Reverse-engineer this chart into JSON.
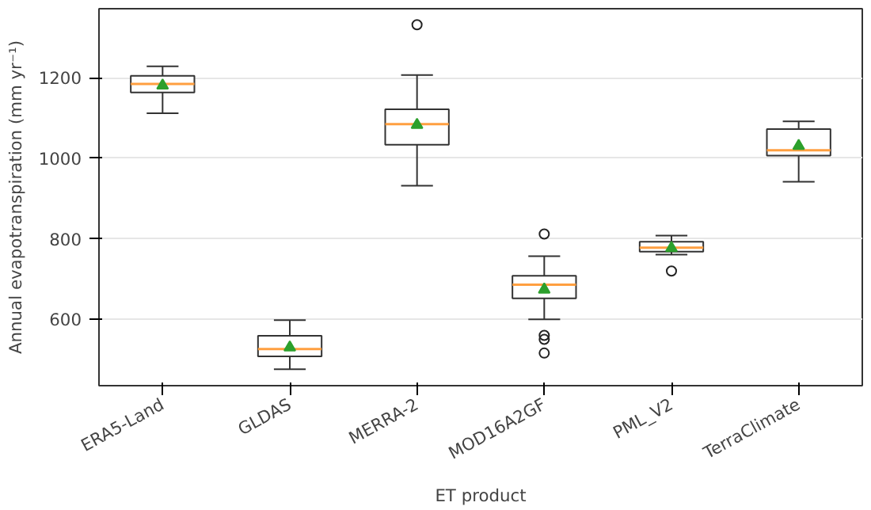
{
  "chart_data": {
    "type": "box",
    "xlabel": "ET product",
    "ylabel": "Annual evapotranspiration (mm yr⁻¹)",
    "categories": [
      "ERA5-Land",
      "GLDAS",
      "MERRA-2",
      "MOD16A2GF",
      "PML_V2",
      "TerraClimate"
    ],
    "boxes": [
      {
        "low": 1112,
        "q1": 1164,
        "median": 1185,
        "q3": 1205,
        "high": 1229,
        "mean": 1181
      },
      {
        "low": 476,
        "q1": 508,
        "median": 526,
        "q3": 559,
        "high": 598,
        "mean": 530
      },
      {
        "low": 932,
        "q1": 1034,
        "median": 1085,
        "q3": 1122,
        "high": 1207,
        "mean": 1083,
        "outliers": [
          1332
        ]
      },
      {
        "low": 600,
        "q1": 652,
        "median": 686,
        "q3": 708,
        "high": 757,
        "mean": 674,
        "outliers": [
          812,
          560,
          550,
          516
        ]
      },
      {
        "low": 761,
        "q1": 768,
        "median": 778,
        "q3": 793,
        "high": 808,
        "mean": 777,
        "outliers": [
          720
        ]
      },
      {
        "low": 942,
        "q1": 1007,
        "median": 1020,
        "q3": 1073,
        "high": 1092,
        "mean": 1031
      }
    ],
    "ylim": [
      435,
      1372
    ],
    "yticks": [
      600,
      800,
      1000,
      1200
    ],
    "grid": "y"
  }
}
